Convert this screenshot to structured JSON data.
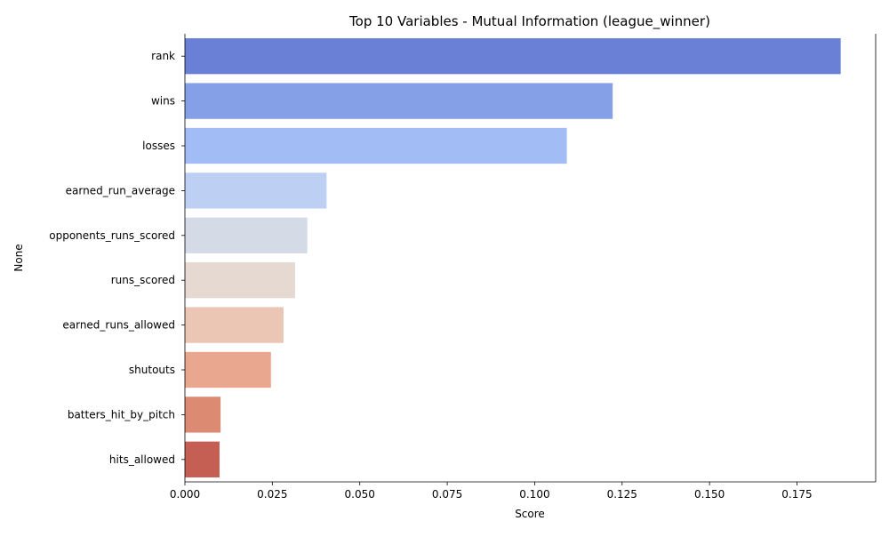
{
  "chart_data": {
    "type": "bar",
    "orientation": "horizontal",
    "title": "Top 10 Variables - Mutual Information (league_winner)",
    "xlabel": "Score",
    "ylabel": "None",
    "categories": [
      "rank",
      "wins",
      "losses",
      "earned_run_average",
      "opponents_runs_scored",
      "runs_scored",
      "earned_runs_allowed",
      "shutouts",
      "batters_hit_by_pitch",
      "hits_allowed"
    ],
    "values": [
      0.1875,
      0.1223,
      0.1092,
      0.0405,
      0.035,
      0.0315,
      0.0282,
      0.0246,
      0.0102,
      0.0099
    ],
    "colors": [
      "#6a80d6",
      "#86a0e8",
      "#a2bcf5",
      "#bdd0f3",
      "#d5dbe6",
      "#e5d9d1",
      "#ecc6b4",
      "#e8a78e",
      "#dc8a71",
      "#c55f54"
    ],
    "xlim": [
      0,
      0.1975
    ],
    "xticks": [
      0.0,
      0.025,
      0.05,
      0.075,
      0.1,
      0.125,
      0.15,
      0.175
    ],
    "xtick_labels": [
      "0.000",
      "0.025",
      "0.050",
      "0.075",
      "0.100",
      "0.125",
      "0.150",
      "0.175"
    ],
    "grid": false,
    "legend": "none"
  }
}
